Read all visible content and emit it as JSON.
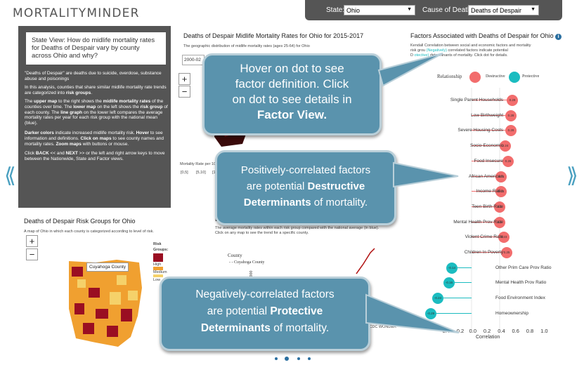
{
  "app": {
    "logo": "MORTALITYMINDER"
  },
  "filters": {
    "state_label": "State:",
    "state_value": "Ohio",
    "cause_label": "Cause of Death:",
    "cause_value": "Deaths of Despair"
  },
  "state_panel": {
    "question": "State View: How do midlife mortality rates for Deaths of Despair vary by county across Ohio and why?",
    "p1": "\"Deaths of Despair\" are deaths due to suicide, overdose, substance abuse and poisonings",
    "p2a": "In this analysis, counties that share similar midlife mortality rate trends are categorized into ",
    "p2b": "risk groups",
    "p2c": ".",
    "p3a": "The ",
    "p3b": "upper map",
    "p3c": " to the right shows the ",
    "p3d": "midlife mortality rates",
    "p3e": " of the counties over time. The ",
    "p3f": "lower map",
    "p3g": " on the left shows the ",
    "p3h": "risk group",
    "p3i": " of each county. The ",
    "p3j": "line graph",
    "p3k": " on the lower left compares the average mortality rates per year for each risk group with the national mean (blue).",
    "p4a": "Darker colors",
    "p4b": " indicate increased midlife mortality risk. ",
    "p4c": "Hover",
    "p4d": " to see information and definitions. ",
    "p4e": "Click on maps",
    "p4f": " to see county names and mortality rates. ",
    "p4g": "Zoom maps",
    "p4h": " with buttons or mouse.",
    "p5a": "Click ",
    "p5b": "BACK",
    "p5c": " << and ",
    "p5d": "NEXT",
    "p5e": " >> or the left and right arrow keys to move between the Nationwide, State and Factor views."
  },
  "rates_panel": {
    "title": "Deaths of Despair Midlife Mortality Rates for Ohio for 2015-2017",
    "subtitle": "The geographic distribution of midlife mortality rates (ages 25-64) for Ohio",
    "period_value": "2000-02",
    "legend_title": "Mortality  Rate  per  100",
    "legend_r1": "[0,5]",
    "legend_r2": "[5,10]",
    "legend_r3": "[10,"
  },
  "risk_panel": {
    "title": "Deaths of Despair Risk Groups for Ohio",
    "subtitle": "A map of Ohio in which each county is categorized according to level of risk.",
    "tooltip": "Cuyahoga County",
    "legend_title": "Risk",
    "legend_title2": "Groups:",
    "legend_high": "High",
    "legend_medium": "Medium",
    "legend_low": "Low"
  },
  "line_panel": {
    "title_start": "L",
    "note1": "The average mortality rates within each risk group compared with the national average (in blue).",
    "note2": "Click on any map to see the trend for a specific county.",
    "county_label": "County",
    "county_item": "Cuyahoga County",
    "ylabel": "s per 100,000",
    "source": "Source: CDC WONDER"
  },
  "factors_panel": {
    "title": "Factors Associated with Deaths of Despair for Ohio",
    "desc1": "Kendall Correlation between social and economic factors and mortality",
    "desc2a": "risk grou",
    "desc2b": "(Negatively)",
    "desc2c": " correlated factors indicate potential",
    "desc3a": "D",
    "desc3b": "otective)",
    "desc3c": " determinants of mortality. Click dot for details.",
    "relationship_label": "Relationship",
    "destructive_label": "Destructive",
    "protective_label": "Protective",
    "xlabel": "Correlation",
    "xticks": [
      "-0.4",
      "-0.2",
      "0.0",
      "0.2",
      "0.4",
      "0.6",
      "0.8",
      "1.0"
    ],
    "destructive": [
      {
        "label": "Single Parent Households",
        "value": "0.29"
      },
      {
        "label": "Low Birthweight",
        "value": "0.28"
      },
      {
        "label": "Severe Housing Costs",
        "value": "0.28"
      },
      {
        "label": "Socio-Economic",
        "value": "0.24"
      },
      {
        "label": "Food Insecure",
        "value": "0.26"
      },
      {
        "label": "African American",
        "value": "0.21"
      },
      {
        "label": "Income Ratio",
        "value": "0.21"
      },
      {
        "label": "Teen Birth Rate",
        "value": "0.2"
      },
      {
        "label": "Mental Health Prov Rate",
        "value": "0.2"
      },
      {
        "label": "Violent Crime Rate",
        "value": "0.23"
      },
      {
        "label": "Children In Poverty",
        "value": "0.25"
      }
    ],
    "protective": [
      {
        "label": "Other Prim Care Prov Ratio",
        "value": "-0.14"
      },
      {
        "label": "Mental Health Prov Ratio",
        "value": "-0.16"
      },
      {
        "label": "Food Environment Index",
        "value": "-0.24"
      },
      {
        "label": "Homeownership",
        "value": "-0.29"
      }
    ]
  },
  "callouts": {
    "c1_l1": "Hover on dot to see",
    "c1_l2": "factor definition. Click",
    "c1_l3": "on dot to see details in",
    "c1_l4": "Factor View.",
    "c2_l1": "Positively-correlated factors",
    "c2_l2a": "are potential ",
    "c2_l2b": "Destructive",
    "c2_l3a": "Determinants",
    "c2_l3b": " of mortality.",
    "c3_l1": "Negatively-correlated factors",
    "c3_l2a": "are potential ",
    "c3_l2b": "Protective",
    "c3_l3a": "Determinants",
    "c3_l3b": " of mortality."
  },
  "nav": {
    "back_arrow": "⟪",
    "next_arrow": "⟫"
  },
  "colors": {
    "accent": "#5a93ad",
    "destructive": "#f26d6d",
    "protective": "#1bbcc0",
    "panel": "#555555"
  }
}
